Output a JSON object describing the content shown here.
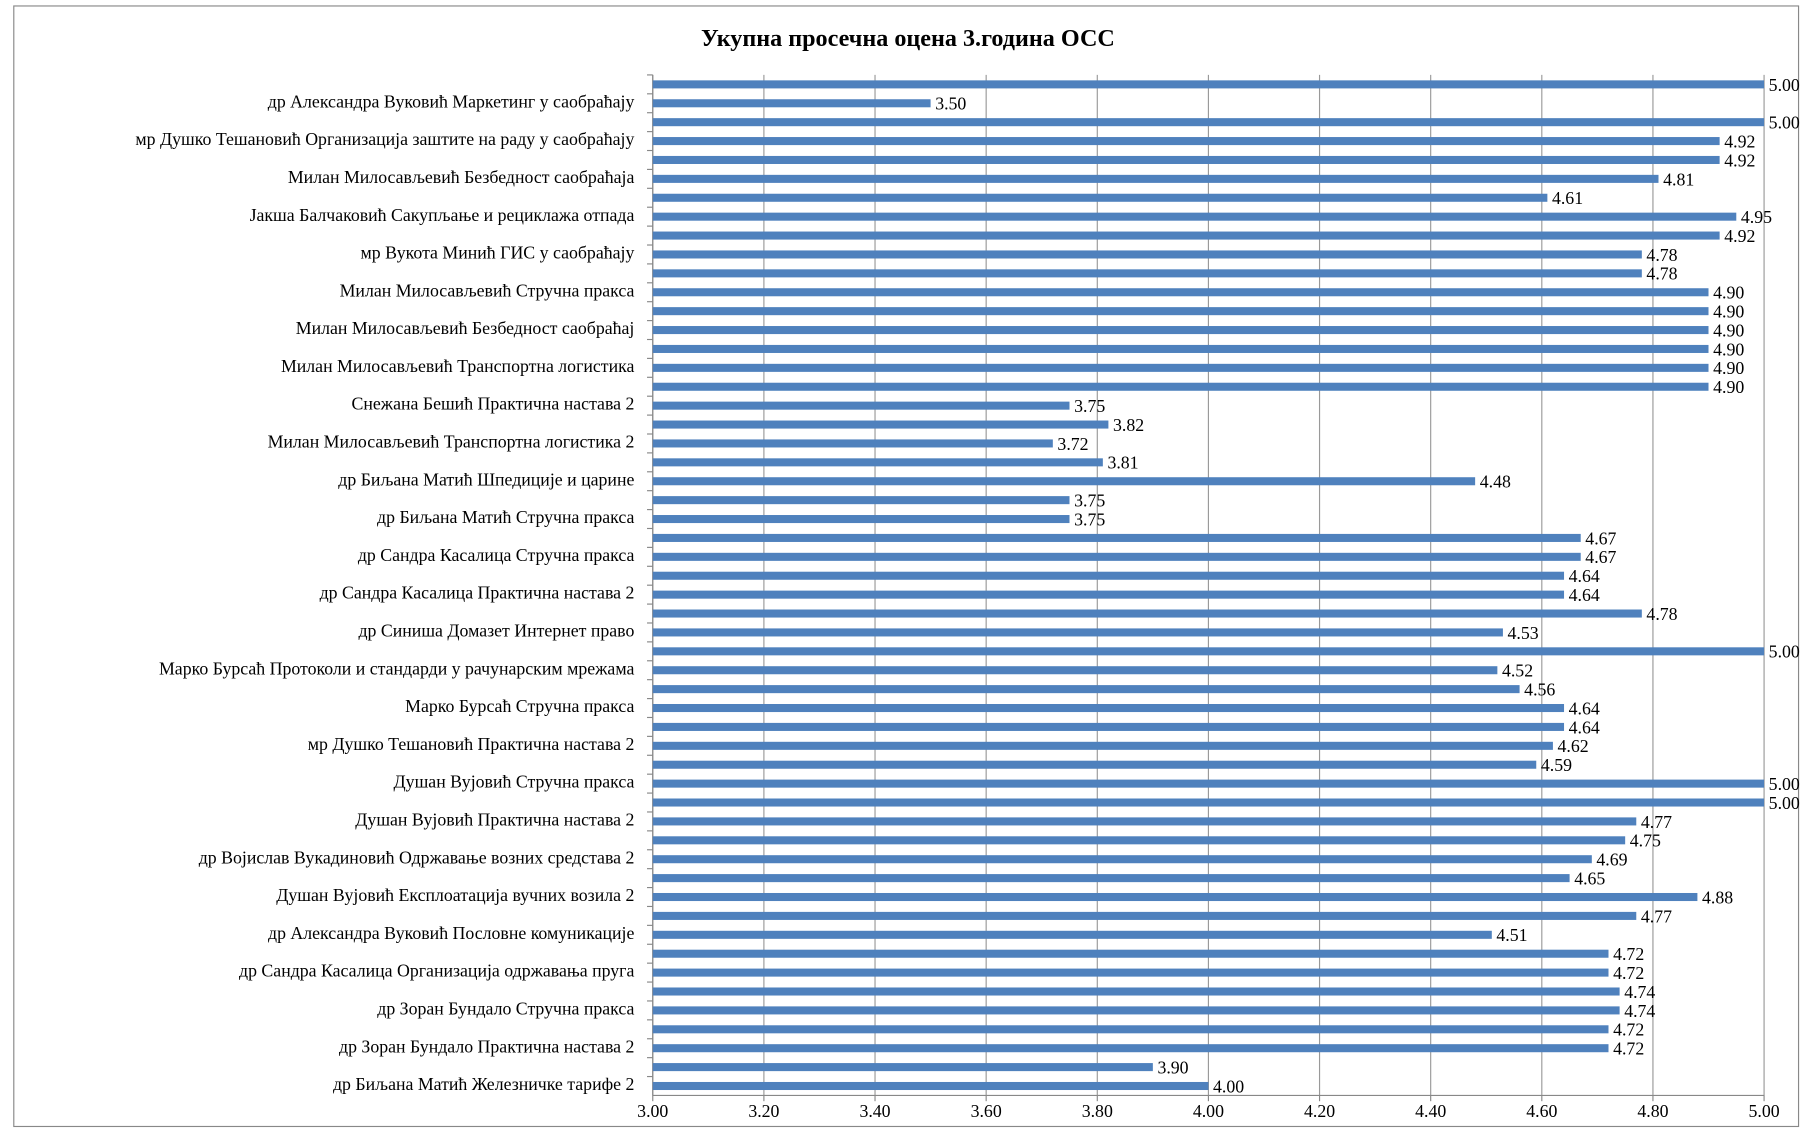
{
  "chart_data": {
    "type": "barh",
    "title": "Укупна просечна оцена 3.година ОСС",
    "color": "#4f81bd",
    "grid": true,
    "categories": [
      null,
      "др Александра Вуковић  Маркетинг у саобраћају",
      null,
      "мр Душко  Тешановић  Организација заштите на раду у саобраћају",
      null,
      "Милан Милосављевић Безбедност саобраћаја",
      null,
      "Јакша  Балчаковић Сакупљање и рециклажа отпада",
      null,
      "мр Вукота  Минић ГИС у саобраћају",
      null,
      "Милан Милосављевић Стручна пракса",
      null,
      "Милан Милосављевић Безбедност саобраћај",
      null,
      "Милан Милосављевић Транспортна логистика",
      null,
      "Снежана Бешић Практична настава 2",
      null,
      "Милан Милосављевић Транспортна логистика 2",
      null,
      "др Биљана Матић Шпедиције и царине",
      null,
      "др Биљана Матић Стручна пракса",
      null,
      "др Сандра Касалица Стручна пракса",
      null,
      "др Сандра Касалица Практична настава 2",
      null,
      "др Синиша Домазет Интернет право",
      null,
      "Марко Бурсаћ Протоколи и стандарди у рачунарским мрежама",
      null,
      "Марко Бурсаћ Стручна пракса",
      null,
      "мр Душко  Тешановић Практична настава 2",
      null,
      "Душан  Вујовић Стручна пракса",
      null,
      "Душан  Вујовић Практична настава 2",
      null,
      "др Војислав Вукадиновић Одржавање возних средстава 2",
      null,
      "Душан  Вујовић Експлоатација вучних возила 2",
      null,
      "др Александра Вуковић  Пословне комуникације",
      null,
      "др Сандра Касалица Организација одржавања пруга",
      null,
      "др Зоран Бундало Стручна пракса",
      null,
      "др Зоран Бундало Практична настава 2",
      null,
      "др Биљана Матић Железничке тарифе 2"
    ],
    "values": [
      5,
      3.5,
      5,
      4.92,
      4.92,
      4.81,
      4.61,
      4.95,
      4.92,
      4.78,
      4.78,
      4.9,
      4.9,
      4.9,
      4.9,
      4.9,
      4.9,
      3.75,
      3.82,
      3.72,
      3.81,
      4.48,
      3.75,
      3.75,
      4.67,
      4.67,
      4.64,
      4.64,
      4.78,
      4.53,
      5,
      4.52,
      4.56,
      4.64,
      4.64,
      4.62,
      4.59,
      5,
      5,
      4.77,
      4.75,
      4.69,
      4.65,
      4.88,
      4.77,
      4.51,
      4.72,
      4.72,
      4.74,
      4.74,
      4.72,
      4.72,
      3.9,
      4
    ],
    "value_labels": [
      "5.00",
      "3.50",
      "5.00",
      "4.92",
      "4.92",
      "4.81",
      "4.61",
      "4.95",
      "4.92",
      "4.78",
      "4.78",
      "4.90",
      "4.90",
      "4.90",
      "4.90",
      "4.90",
      "4.90",
      "3.75",
      "3.82",
      "3.72",
      "3.81",
      "4.48",
      "3.75",
      "3.75",
      "4.67",
      "4.67",
      "4.64",
      "4.64",
      "4.78",
      "4.53",
      "5.00",
      "4.52",
      "4.56",
      "4.64",
      "4.64",
      "4.62",
      "4.59",
      "5.00",
      "5.00",
      "4.77",
      "4.75",
      "4.69",
      "4.65",
      "4.88",
      "4.77",
      "4.51",
      "4.72",
      "4.72",
      "4.74",
      "4.74",
      "4.72",
      "4.72",
      "3.90",
      "4.00"
    ],
    "xlim": [
      3,
      5
    ],
    "xticks": [
      {
        "value": 3,
        "label": "3.00"
      },
      {
        "value": 3.2,
        "label": "3.20"
      },
      {
        "value": 3.4,
        "label": "3.40"
      },
      {
        "value": 3.6,
        "label": "3.60"
      },
      {
        "value": 3.8,
        "label": "3.80"
      },
      {
        "value": 4,
        "label": "4.00"
      },
      {
        "value": 4.2,
        "label": "4.20"
      },
      {
        "value": 4.4,
        "label": "4.40"
      },
      {
        "value": 4.6,
        "label": "4.60"
      },
      {
        "value": 4.8,
        "label": "4.80"
      },
      {
        "value": 5,
        "label": "5.00"
      }
    ]
  }
}
